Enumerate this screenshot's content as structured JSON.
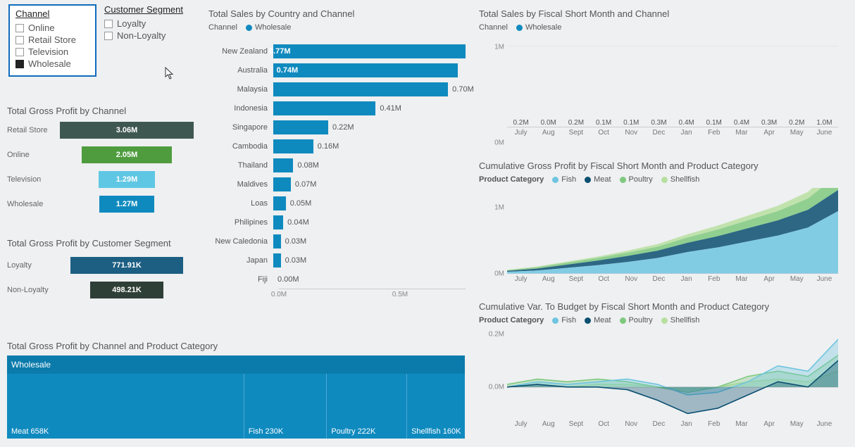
{
  "palette": {
    "wholesale": "#0f8abf",
    "barBlue": "#0f8abf",
    "retail": "#3f5751",
    "online": "#4f9c3f",
    "television": "#5fc7e4",
    "loyaltyDark": "#1c5f82",
    "nonloyaltyDark": "#2e3f37",
    "fish": "#6fc5e0",
    "meat": "#0b4f71",
    "poultry": "#7fc97f",
    "shellfish": "#b7dfa0",
    "bg": "#eef0f1",
    "grid": "#e6e6e6",
    "axis": "#cccccc",
    "text": "#555555"
  },
  "channelSlicer": {
    "title": "Channel",
    "items": [
      "Online",
      "Retail Store",
      "Television",
      "Wholesale"
    ],
    "checked": [
      false,
      false,
      false,
      true
    ]
  },
  "segmentSlicer": {
    "title": "Customer Segment",
    "items": [
      "Loyalty",
      "Non-Loyalty"
    ],
    "checked": [
      false,
      false
    ]
  },
  "profitByChannel": {
    "title": "Total Gross Profit by Channel",
    "max": 3.06,
    "rows": [
      {
        "label": "Retail Store",
        "value": "3.06M",
        "w": 1.0,
        "color": "#3f5751"
      },
      {
        "label": "Online",
        "value": "2.05M",
        "w": 0.67,
        "color": "#4f9c3f"
      },
      {
        "label": "Television",
        "value": "1.29M",
        "w": 0.42,
        "color": "#5fc7e4"
      },
      {
        "label": "Wholesale",
        "value": "1.27M",
        "w": 0.41,
        "color": "#0f8abf"
      }
    ]
  },
  "profitBySegment": {
    "title": "Total Gross Profit by Customer Segment",
    "rows": [
      {
        "label": "Loyalty",
        "value": "771.91K",
        "w": 1.0,
        "color": "#1c5f82"
      },
      {
        "label": "Non-Loyalty",
        "value": "498.21K",
        "w": 0.645,
        "color": "#2e3f37"
      }
    ]
  },
  "salesByCountry": {
    "title": "Total Sales by Country and Channel",
    "legendLabel": "Channel",
    "legendSeries": "Wholesale",
    "color": "#0f8abf",
    "axisMax": 0.77,
    "axisTicks": [
      {
        "pos": 0,
        "label": "0.0M"
      },
      {
        "pos": 0.649,
        "label": "0.5M"
      }
    ],
    "rows": [
      {
        "cat": "New Zealand",
        "val": 0.77,
        "label": "0.77M",
        "inside": true
      },
      {
        "cat": "Australia",
        "val": 0.74,
        "label": "0.74M",
        "inside": true
      },
      {
        "cat": "Malaysia",
        "val": 0.7,
        "label": "0.70M",
        "inside": false
      },
      {
        "cat": "Indonesia",
        "val": 0.41,
        "label": "0.41M",
        "inside": false
      },
      {
        "cat": "Singapore",
        "val": 0.22,
        "label": "0.22M",
        "inside": false
      },
      {
        "cat": "Cambodia",
        "val": 0.16,
        "label": "0.16M",
        "inside": false
      },
      {
        "cat": "Thailand",
        "val": 0.08,
        "label": "0.08M",
        "inside": false
      },
      {
        "cat": "Maldives",
        "val": 0.07,
        "label": "0.07M",
        "inside": false
      },
      {
        "cat": "Loas",
        "val": 0.05,
        "label": "0.05M",
        "inside": false
      },
      {
        "cat": "Philipines",
        "val": 0.04,
        "label": "0.04M",
        "inside": false
      },
      {
        "cat": "New Caledonia",
        "val": 0.03,
        "label": "0.03M",
        "inside": false
      },
      {
        "cat": "Japan",
        "val": 0.03,
        "label": "0.03M",
        "inside": false
      },
      {
        "cat": "Fiji",
        "val": 0.0,
        "label": "0.00M",
        "inside": false
      }
    ]
  },
  "salesByMonth": {
    "title": "Total Sales by Fiscal Short Month and Channel",
    "legendLabel": "Channel",
    "legendSeries": "Wholesale",
    "color": "#0f8abf",
    "ymax": 1.1,
    "yTicks": [
      {
        "v": 0,
        "label": "0M"
      },
      {
        "v": 1.0,
        "label": "1M"
      }
    ],
    "cats": [
      "July",
      "Aug",
      "Sept",
      "Oct",
      "Nov",
      "Dec",
      "Jan",
      "Feb",
      "Mar",
      "Apr",
      "May",
      "June"
    ],
    "vals": [
      0.2,
      0.05,
      0.2,
      0.1,
      0.1,
      0.3,
      0.4,
      0.1,
      0.4,
      0.3,
      0.2,
      1.0
    ],
    "labels": [
      "0.2M",
      "0.0M",
      "0.2M",
      "0.1M",
      "0.1M",
      "0.3M",
      "0.4M",
      "0.1M",
      "0.4M",
      "0.3M",
      "0.2M",
      "1.0M"
    ]
  },
  "cumGrossProfit": {
    "title": "Cumulative Gross Profit by Fiscal Short Month and Product Category",
    "legendLabel": "Product Category",
    "series": [
      {
        "name": "Fish",
        "color": "#6fc5e0"
      },
      {
        "name": "Meat",
        "color": "#0b4f71"
      },
      {
        "name": "Poultry",
        "color": "#7fc97f"
      },
      {
        "name": "Shellfish",
        "color": "#b7dfa0"
      }
    ],
    "cats": [
      "July",
      "Aug",
      "Sept",
      "Oct",
      "Nov",
      "Dec",
      "Jan",
      "Feb",
      "Mar",
      "Apr",
      "May",
      "June"
    ],
    "ymax": 1.3,
    "yTicks": [
      {
        "v": 0,
        "label": "0M"
      },
      {
        "v": 1.0,
        "label": "1M"
      }
    ],
    "stack": [
      [
        0.03,
        0.05,
        0.09,
        0.13,
        0.18,
        0.24,
        0.33,
        0.4,
        0.49,
        0.58,
        0.7,
        0.95
      ],
      [
        0.015,
        0.03,
        0.05,
        0.07,
        0.09,
        0.11,
        0.14,
        0.17,
        0.2,
        0.23,
        0.27,
        0.32
      ],
      [
        0.01,
        0.02,
        0.03,
        0.04,
        0.05,
        0.06,
        0.08,
        0.1,
        0.12,
        0.14,
        0.17,
        0.23
      ],
      [
        0.005,
        0.01,
        0.015,
        0.02,
        0.03,
        0.04,
        0.05,
        0.06,
        0.07,
        0.08,
        0.1,
        0.15
      ]
    ]
  },
  "cumVarBudget": {
    "title": "Cumulative Var. To Budget by Fiscal Short Month and Product Category",
    "legendLabel": "Product Category",
    "series": [
      {
        "name": "Fish",
        "color": "#6fc5e0"
      },
      {
        "name": "Meat",
        "color": "#0b4f71"
      },
      {
        "name": "Poultry",
        "color": "#7fc97f"
      },
      {
        "name": "Shellfish",
        "color": "#b7dfa0"
      }
    ],
    "cats": [
      "July",
      "Aug",
      "Sept",
      "Oct",
      "Nov",
      "Dec",
      "Jan",
      "Feb",
      "Mar",
      "Apr",
      "May",
      "June"
    ],
    "ymin": -0.12,
    "ymax": 0.22,
    "yTicks": [
      {
        "v": 0.0,
        "label": "0.0M"
      },
      {
        "v": 0.2,
        "label": "0.2M"
      }
    ],
    "lines": {
      "Fish": [
        0.0,
        0.02,
        0.01,
        0.02,
        0.03,
        0.01,
        -0.03,
        -0.02,
        0.02,
        0.08,
        0.06,
        0.18
      ],
      "Meat": [
        0.0,
        0.01,
        0.0,
        0.0,
        -0.01,
        -0.05,
        -0.1,
        -0.08,
        -0.03,
        0.02,
        0.0,
        0.1
      ],
      "Poultry": [
        0.01,
        0.03,
        0.02,
        0.03,
        0.02,
        0.0,
        -0.02,
        0.0,
        0.04,
        0.06,
        0.04,
        0.12
      ],
      "Shellfish": [
        0.0,
        0.01,
        0.0,
        0.01,
        0.01,
        0.0,
        -0.01,
        0.0,
        0.02,
        0.03,
        0.02,
        0.06
      ]
    }
  },
  "treemap": {
    "title": "Total Gross Profit by Channel and Product Category",
    "header": "Wholesale",
    "headerColor": "#0b7bab",
    "tileColor": "#0f8abf",
    "tiles": [
      {
        "label": "Meat 658K",
        "w": 0.518
      },
      {
        "label": "Fish 230K",
        "w": 0.181
      },
      {
        "label": "Poultry 222K",
        "w": 0.175
      },
      {
        "label": "Shellfish 160K",
        "w": 0.126
      }
    ]
  }
}
